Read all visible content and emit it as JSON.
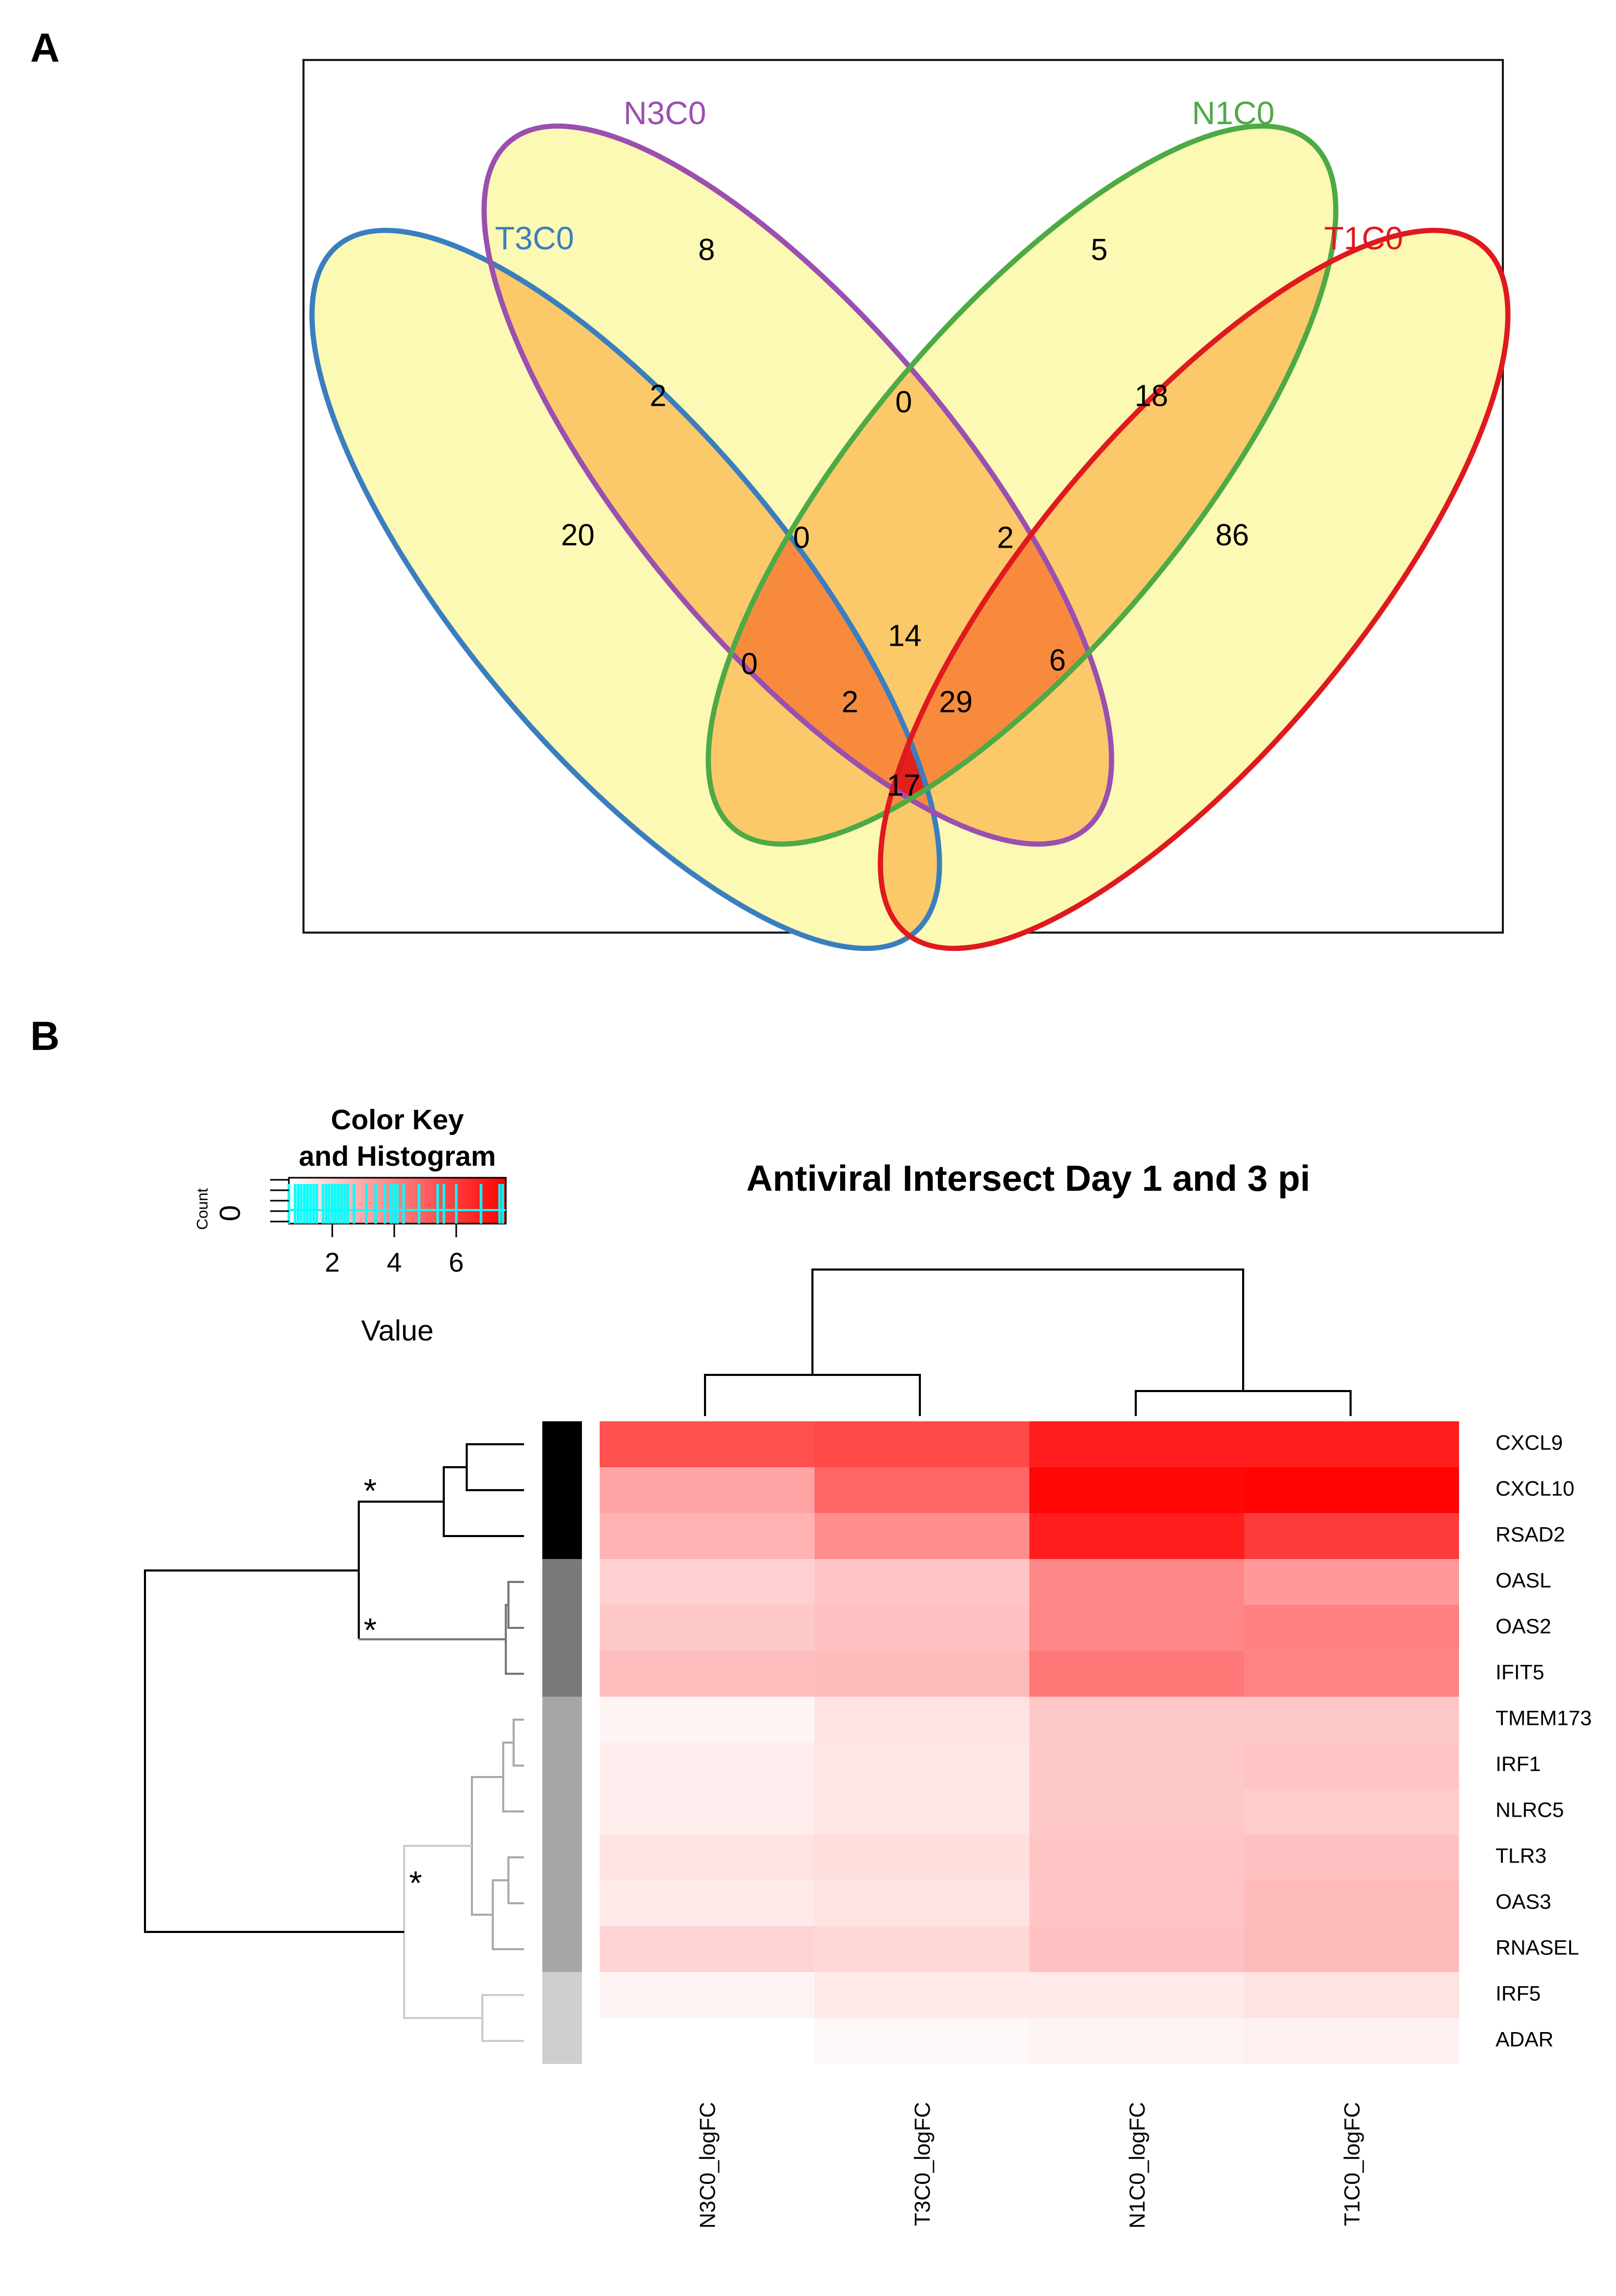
{
  "panels": {
    "a": "A",
    "b": "B"
  },
  "venn": {
    "sets": [
      {
        "name": "T3C0",
        "color": "#3a7ebf"
      },
      {
        "name": "N3C0",
        "color": "#9b4fb0"
      },
      {
        "name": "N1C0",
        "color": "#4daa45"
      },
      {
        "name": "T1C0",
        "color": "#e0191f"
      }
    ],
    "fill_colors": {
      "one": "#fbf9b3",
      "two": "#fbc96a",
      "three": "#f88a3e",
      "four": "#e3201b"
    },
    "regions": [
      {
        "sets": "N3C0",
        "value": "8"
      },
      {
        "sets": "N1C0",
        "value": "5"
      },
      {
        "sets": "T3C0",
        "value": "20"
      },
      {
        "sets": "T1C0",
        "value": "86"
      },
      {
        "sets": "T3C0&N3C0",
        "value": "2"
      },
      {
        "sets": "N3C0&N1C0",
        "value": "0"
      },
      {
        "sets": "N1C0&T1C0",
        "value": "18"
      },
      {
        "sets": "T3C0&N3C0&N1C0",
        "value": "0"
      },
      {
        "sets": "N3C0&N1C0&T1C0",
        "value": "2"
      },
      {
        "sets": "T3C0&N1C0",
        "value": "0"
      },
      {
        "sets": "all",
        "value": "14"
      },
      {
        "sets": "N3C0&T1C0",
        "value": "6"
      },
      {
        "sets": "T3C0&N1C0&T1C0",
        "value": "2"
      },
      {
        "sets": "T3C0&N3C0&T1C0",
        "value": "29"
      },
      {
        "sets": "T3C0&T1C0",
        "value": "17"
      }
    ]
  },
  "color_key": {
    "title_line1": "Color Key",
    "title_line2": "and Histogram",
    "ylabel": "Count",
    "yval": "0",
    "xlabel": "Value",
    "ticks": [
      "2",
      "4",
      "6"
    ],
    "range": [
      0.6,
      7.6
    ],
    "low_color": "#ffffff",
    "high_color": "#ff0000",
    "hist_color": "#00ffff"
  },
  "chart_data": {
    "type": "heatmap",
    "title": "Antiviral Intersect Day 1 and 3 pi",
    "columns": [
      "N3C0_logFC",
      "T3C0_logFC",
      "N1C0_logFC",
      "T1C0_logFC"
    ],
    "rows": [
      "CXCL9",
      "CXCL10",
      "RSAD2",
      "OASL",
      "OAS2",
      "IFIT5",
      "TMEM173",
      "IRF1",
      "NLRC5",
      "TLR3",
      "OAS3",
      "RNASEL",
      "IRF5",
      "ADAR"
    ],
    "values": [
      [
        5.4,
        5.6,
        6.8,
        6.8
      ],
      [
        3.1,
        4.8,
        7.4,
        7.5
      ],
      [
        2.7,
        3.7,
        6.8,
        6.0
      ],
      [
        1.9,
        2.2,
        3.9,
        3.4
      ],
      [
        2.1,
        2.3,
        3.9,
        4.1
      ],
      [
        2.4,
        2.5,
        4.3,
        4.0
      ],
      [
        0.9,
        1.4,
        2.1,
        2.1
      ],
      [
        1.1,
        1.3,
        2.1,
        2.2
      ],
      [
        1.1,
        1.3,
        2.1,
        2.0
      ],
      [
        1.4,
        1.5,
        2.2,
        2.3
      ],
      [
        1.2,
        1.4,
        2.2,
        2.5
      ],
      [
        1.8,
        1.7,
        2.3,
        2.5
      ],
      [
        0.9,
        1.2,
        1.2,
        1.4
      ],
      [
        0.6,
        0.8,
        0.9,
        1.0
      ]
    ],
    "row_groups": [
      {
        "rows": [
          0,
          1,
          2
        ],
        "color": "#000000"
      },
      {
        "rows": [
          3,
          4,
          5
        ],
        "color": "#7a7a7a"
      },
      {
        "rows": [
          6,
          7,
          8,
          9,
          10,
          11
        ],
        "color": "#a6a6a6"
      },
      {
        "rows": [
          12,
          13
        ],
        "color": "#cfcfcf"
      }
    ],
    "significance_markers": [
      "*",
      "*",
      "*"
    ]
  }
}
